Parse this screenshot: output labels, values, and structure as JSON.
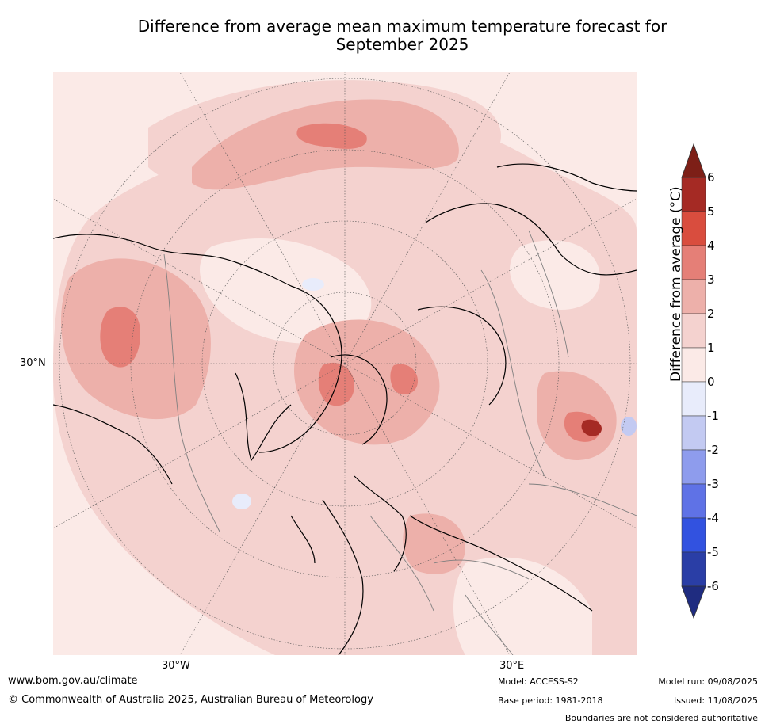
{
  "title_line1": "Difference from average mean maximum temperature forecast for",
  "title_line2": "September 2025",
  "map": {
    "lat_labels": [
      "30°N"
    ],
    "lon_labels": [
      "30°W",
      "30°E"
    ]
  },
  "colorbar": {
    "title": "Difference from average (°C)",
    "ticks": [
      "6",
      "5",
      "4",
      "3",
      "2",
      "1",
      "0",
      "-1",
      "-2",
      "-3",
      "-4",
      "-5",
      "-6"
    ],
    "colors": [
      "#a52a24",
      "#d94d3e",
      "#e57f77",
      "#edb0aa",
      "#f4d2cf",
      "#fbeae7",
      "#e8ecfb",
      "#c3caf2",
      "#8e9ced",
      "#5f72e6",
      "#3252e0",
      "#2a3ea6"
    ],
    "over_color": "#7d1f17",
    "under_color": "#1f2c80"
  },
  "footer": {
    "website": "www.bom.gov.au/climate",
    "copyright": "© Commonwealth of Australia 2025, Australian Bureau of Meteorology",
    "model": "Model: ACCESS-S2",
    "base_period": "Base period: 1981-2018",
    "model_run": "Model run: 09/08/2025",
    "issued": "Issued: 11/08/2025",
    "disclaimer": "Boundaries are not considered authoritative"
  }
}
